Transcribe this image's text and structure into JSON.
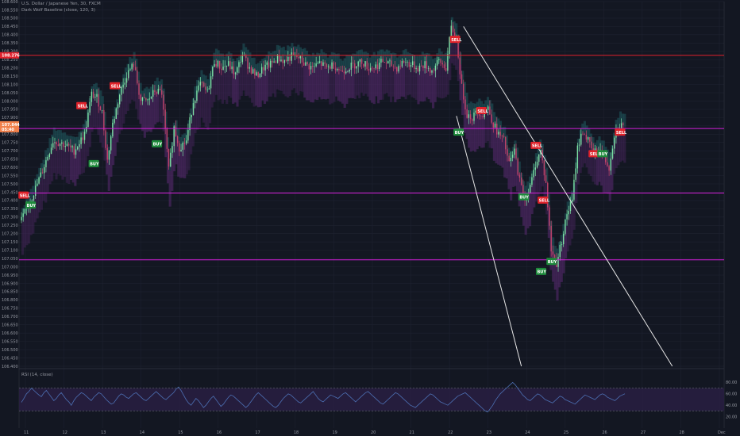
{
  "header": {
    "symbol_line": "U.S. Dollar / Japanese Yen, 30, FXCM",
    "indicator_line": "Dark Wolf Baseline (close, 120, 3)",
    "rsi_label": "RSI (14, close)"
  },
  "colors": {
    "background": "#131722",
    "grid": "#1e2230",
    "candle_up": "#7de0a4",
    "candle_down": "#c2456b",
    "cloud_up": "#1f5a5f",
    "cloud_down": "#4a2660",
    "red_level": "#e0202c",
    "magenta_level": "#d21fd8",
    "channel": "#e6e6e6",
    "rsi_line": "#4c6fb2",
    "rsi_band": "#2a1f45",
    "buy": "#1e8a3b",
    "sell": "#e0222a",
    "price_tag": "#f2814b"
  },
  "chart_data": {
    "type": "candlestick",
    "price_axis": {
      "min": 106.4,
      "max": 108.6,
      "tick_labels": [
        "108.600",
        "108.550",
        "108.500",
        "108.450",
        "108.400",
        "108.350",
        "108.300",
        "108.250",
        "108.200",
        "108.150",
        "108.100",
        "108.050",
        "108.000",
        "107.950",
        "107.900",
        "107.850",
        "107.800",
        "107.750",
        "107.700",
        "107.650",
        "107.600",
        "107.550",
        "107.500",
        "107.450",
        "107.400",
        "107.350",
        "107.300",
        "107.250",
        "107.200",
        "107.150",
        "107.100",
        "107.050",
        "107.000",
        "106.950",
        "106.900",
        "106.850",
        "106.800",
        "106.750",
        "106.700",
        "106.650",
        "106.600",
        "106.550",
        "106.500",
        "106.450",
        "106.400"
      ]
    },
    "time_axis": {
      "labels": [
        "11",
        "12",
        "13",
        "14",
        "15",
        "16",
        "17",
        "18",
        "19",
        "20",
        "21",
        "22",
        "23",
        "24",
        "25",
        "26",
        "27",
        "28",
        "Dec"
      ]
    },
    "levels": [
      {
        "price": 108.276,
        "style": "red",
        "label": "108.276"
      },
      {
        "price": 107.834,
        "style": "magenta"
      },
      {
        "price": 107.445,
        "style": "magenta"
      },
      {
        "price": 107.042,
        "style": "magenta"
      }
    ],
    "current_price_label": "107.844",
    "current_price_sublabel": "05:40",
    "channel": {
      "upper": [
        [
          12.6,
          108.45
        ],
        [
          14.75,
          106.4
        ]
      ],
      "lower": [
        [
          12.4,
          107.91
        ],
        [
          14.25,
          106.4
        ]
      ]
    },
    "signals": [
      {
        "type": "SELL",
        "x": 0.05,
        "price": 107.43
      },
      {
        "type": "BUY",
        "x": 0.25,
        "price": 107.37
      },
      {
        "type": "SELL",
        "x": 1.7,
        "price": 107.97
      },
      {
        "type": "BUY",
        "x": 2.05,
        "price": 107.62
      },
      {
        "type": "SELL",
        "x": 2.65,
        "price": 108.09
      },
      {
        "type": "BUY",
        "x": 3.85,
        "price": 107.74
      },
      {
        "type": "SELL",
        "x": 12.35,
        "price": 108.37
      },
      {
        "type": "BUY",
        "x": 12.45,
        "price": 107.81
      },
      {
        "type": "SELL",
        "x": 13.1,
        "price": 107.94
      },
      {
        "type": "SELL",
        "x": 14.65,
        "price": 107.73
      },
      {
        "type": "BUY",
        "x": 14.3,
        "price": 107.42
      },
      {
        "type": "SELL",
        "x": 14.85,
        "price": 107.4
      },
      {
        "type": "BUY",
        "x": 14.8,
        "price": 106.97
      },
      {
        "type": "BUY",
        "x": 15.1,
        "price": 107.03
      },
      {
        "type": "SELL",
        "x": 16.3,
        "price": 107.68
      },
      {
        "type": "BUY",
        "x": 16.55,
        "price": 107.68
      },
      {
        "type": "SELL",
        "x": 17.05,
        "price": 107.81
      }
    ],
    "price_path": [
      [
        0.0,
        107.28
      ],
      [
        0.3,
        107.42
      ],
      [
        0.6,
        107.58
      ],
      [
        0.9,
        107.76
      ],
      [
        1.2,
        107.74
      ],
      [
        1.5,
        107.7
      ],
      [
        1.8,
        107.8
      ],
      [
        2.0,
        108.04
      ],
      [
        2.15,
        108.02
      ],
      [
        2.3,
        107.93
      ],
      [
        2.45,
        107.64
      ],
      [
        2.6,
        107.86
      ],
      [
        2.8,
        108.04
      ],
      [
        3.0,
        108.16
      ],
      [
        3.2,
        108.22
      ],
      [
        3.4,
        108.0
      ],
      [
        3.6,
        108.0
      ],
      [
        3.8,
        108.06
      ],
      [
        4.0,
        108.05
      ],
      [
        4.2,
        107.58
      ],
      [
        4.35,
        107.84
      ],
      [
        4.5,
        107.72
      ],
      [
        4.7,
        107.76
      ],
      [
        4.9,
        108.0
      ],
      [
        5.1,
        108.1
      ],
      [
        5.3,
        108.05
      ],
      [
        5.5,
        108.24
      ],
      [
        5.7,
        108.2
      ],
      [
        5.9,
        108.22
      ],
      [
        6.1,
        108.16
      ],
      [
        6.3,
        108.28
      ],
      [
        6.5,
        108.2
      ],
      [
        6.7,
        108.15
      ],
      [
        6.9,
        108.2
      ],
      [
        7.1,
        108.22
      ],
      [
        7.3,
        108.26
      ],
      [
        7.5,
        108.24
      ],
      [
        7.7,
        108.27
      ],
      [
        7.9,
        108.26
      ],
      [
        8.1,
        108.22
      ],
      [
        8.3,
        108.2
      ],
      [
        8.5,
        108.23
      ],
      [
        8.7,
        108.2
      ],
      [
        8.9,
        108.22
      ],
      [
        9.1,
        108.18
      ],
      [
        9.3,
        108.2
      ],
      [
        9.5,
        108.22
      ],
      [
        9.7,
        108.24
      ],
      [
        9.9,
        108.2
      ],
      [
        10.1,
        108.21
      ],
      [
        10.3,
        108.24
      ],
      [
        10.5,
        108.22
      ],
      [
        10.7,
        108.2
      ],
      [
        10.9,
        108.24
      ],
      [
        11.1,
        108.22
      ],
      [
        11.3,
        108.2
      ],
      [
        11.5,
        108.22
      ],
      [
        11.7,
        108.18
      ],
      [
        11.9,
        108.24
      ],
      [
        12.1,
        108.2
      ],
      [
        12.25,
        108.44
      ],
      [
        12.4,
        108.38
      ],
      [
        12.55,
        108.08
      ],
      [
        12.7,
        107.92
      ],
      [
        12.85,
        107.9
      ],
      [
        13.0,
        107.94
      ],
      [
        13.15,
        107.92
      ],
      [
        13.3,
        107.96
      ],
      [
        13.45,
        107.86
      ],
      [
        13.6,
        107.8
      ],
      [
        13.75,
        107.76
      ],
      [
        13.9,
        107.62
      ],
      [
        14.05,
        107.7
      ],
      [
        14.2,
        107.52
      ],
      [
        14.35,
        107.4
      ],
      [
        14.5,
        107.48
      ],
      [
        14.65,
        107.62
      ],
      [
        14.8,
        107.7
      ],
      [
        14.95,
        107.5
      ],
      [
        15.1,
        107.1
      ],
      [
        15.25,
        107.02
      ],
      [
        15.4,
        107.16
      ],
      [
        15.55,
        107.32
      ],
      [
        15.7,
        107.4
      ],
      [
        15.85,
        107.72
      ],
      [
        16.0,
        107.82
      ],
      [
        16.15,
        107.76
      ],
      [
        16.3,
        107.68
      ],
      [
        16.45,
        107.72
      ],
      [
        16.6,
        107.66
      ],
      [
        16.75,
        107.6
      ],
      [
        16.9,
        107.8
      ],
      [
        17.05,
        107.86
      ],
      [
        17.2,
        107.84
      ]
    ],
    "rsi": {
      "label": "RSI (14, close)",
      "axis_labels": [
        "80.00",
        "60.00",
        "40.00",
        "20.00"
      ],
      "levels": [
        70,
        30
      ],
      "values": [
        45,
        52,
        60,
        64,
        70,
        66,
        62,
        58,
        55,
        62,
        66,
        60,
        54,
        48,
        52,
        58,
        62,
        56,
        50,
        46,
        40,
        48,
        54,
        58,
        62,
        60,
        56,
        52,
        48,
        54,
        58,
        62,
        60,
        55,
        50,
        46,
        42,
        44,
        50,
        56,
        60,
        58,
        54,
        52,
        56,
        60,
        62,
        58,
        54,
        50,
        48,
        52,
        56,
        60,
        64,
        60,
        56,
        52,
        50,
        54,
        58,
        62,
        68,
        72,
        66,
        58,
        50,
        44,
        40,
        46,
        52,
        48,
        42,
        36,
        40,
        46,
        52,
        56,
        50,
        44,
        38,
        42,
        48,
        54,
        58,
        56,
        52,
        48,
        44,
        40,
        36,
        40,
        46,
        52,
        58,
        62,
        58,
        54,
        50,
        46,
        42,
        38,
        36,
        40,
        46,
        52,
        56,
        60,
        58,
        54,
        50,
        46,
        44,
        48,
        52,
        56,
        60,
        64,
        58,
        52,
        48,
        46,
        50,
        54,
        58,
        56,
        54,
        52,
        56,
        60,
        62,
        58,
        54,
        50,
        46,
        50,
        54,
        58,
        62,
        64,
        60,
        56,
        52,
        48,
        44,
        42,
        46,
        50,
        54,
        58,
        62,
        60,
        56,
        52,
        48,
        44,
        40,
        38,
        36,
        40,
        44,
        48,
        52,
        56,
        60,
        58,
        54,
        50,
        46,
        44,
        42,
        40,
        44,
        48,
        52,
        56,
        58,
        60,
        62,
        58,
        54,
        50,
        46,
        42,
        38,
        34,
        30,
        28,
        34,
        40,
        48,
        54,
        60,
        64,
        68,
        72,
        76,
        80,
        76,
        70,
        64,
        58,
        54,
        50,
        48,
        52,
        56,
        60,
        58,
        54,
        50,
        48,
        46,
        44,
        48,
        52,
        56,
        54,
        50,
        48,
        46,
        44,
        42,
        46,
        50,
        54,
        58,
        56,
        54,
        52,
        50,
        54,
        58,
        60,
        58,
        54,
        52,
        50,
        48,
        52,
        56,
        58,
        60
      ]
    }
  }
}
